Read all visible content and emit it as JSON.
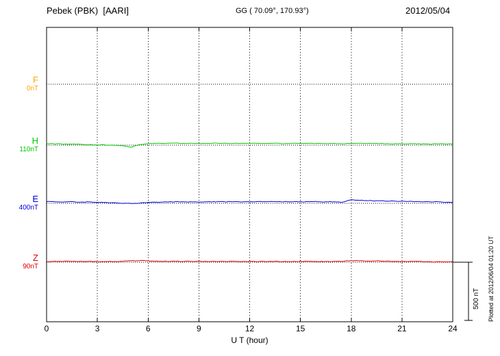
{
  "header": {
    "station": "Pebek (PBK)  [AARI]",
    "coords": "GG ( 70.09°, 170.93°)",
    "date": "2012/05/04"
  },
  "scale_bar": {
    "label": "500 nT"
  },
  "footer": {
    "plotted_note": "Plotted at 2012/06/04 01:20 UT"
  },
  "chart_data": {
    "type": "line",
    "title": "Pebek (PBK) [AARI] magnetogram",
    "xlabel": "U T (hour)",
    "x_range": [
      0,
      24
    ],
    "x_ticks": [
      0,
      3,
      6,
      9,
      12,
      15,
      18,
      21,
      24
    ],
    "x_step_hours": 0.5,
    "scale_bar_nT": 500,
    "grid": "dotted-vertical-at-3h",
    "series": [
      {
        "name": "F",
        "baseline_label": "0nT",
        "baseline_nT": 0,
        "color": "#ffa500",
        "values": []
      },
      {
        "name": "H",
        "baseline_label": "110nT",
        "baseline_nT": 110,
        "color": "#00c800",
        "values": [
          122,
          121,
          119,
          118,
          117,
          115,
          113,
          112,
          111,
          106,
          94,
          117,
          123,
          125,
          126,
          126,
          125,
          124,
          124,
          125,
          125,
          126,
          125,
          124,
          125,
          125,
          126,
          125,
          124,
          124,
          125,
          125,
          124,
          124,
          123,
          123,
          124,
          125,
          124,
          123,
          122,
          121,
          121,
          122,
          121,
          119,
          120,
          121,
          120
        ]
      },
      {
        "name": "E",
        "baseline_label": "400nT",
        "baseline_nT": 400,
        "color": "#0000e0",
        "values": [
          415,
          414,
          412,
          413,
          411,
          410,
          408,
          406,
          404,
          401,
          399,
          403,
          407,
          409,
          411,
          412,
          413,
          412,
          412,
          413,
          414,
          414,
          413,
          413,
          414,
          415,
          415,
          414,
          414,
          413,
          414,
          415,
          414,
          413,
          412,
          411,
          428,
          426,
          424,
          422,
          420,
          418,
          417,
          416,
          414,
          413,
          413,
          411,
          409
        ]
      },
      {
        "name": "Z",
        "baseline_label": "90nT",
        "baseline_nT": 90,
        "color": "#e00000",
        "values": [
          96,
          97,
          98,
          97,
          97,
          96,
          96,
          95,
          96,
          98,
          103,
          104,
          100,
          99,
          98,
          98,
          97,
          97,
          97,
          96,
          96,
          96,
          97,
          97,
          97,
          96,
          96,
          96,
          96,
          96,
          97,
          97,
          96,
          96,
          97,
          98,
          104,
          102,
          101,
          100,
          99,
          98,
          98,
          97,
          96,
          94,
          92,
          95,
          96
        ]
      }
    ]
  }
}
